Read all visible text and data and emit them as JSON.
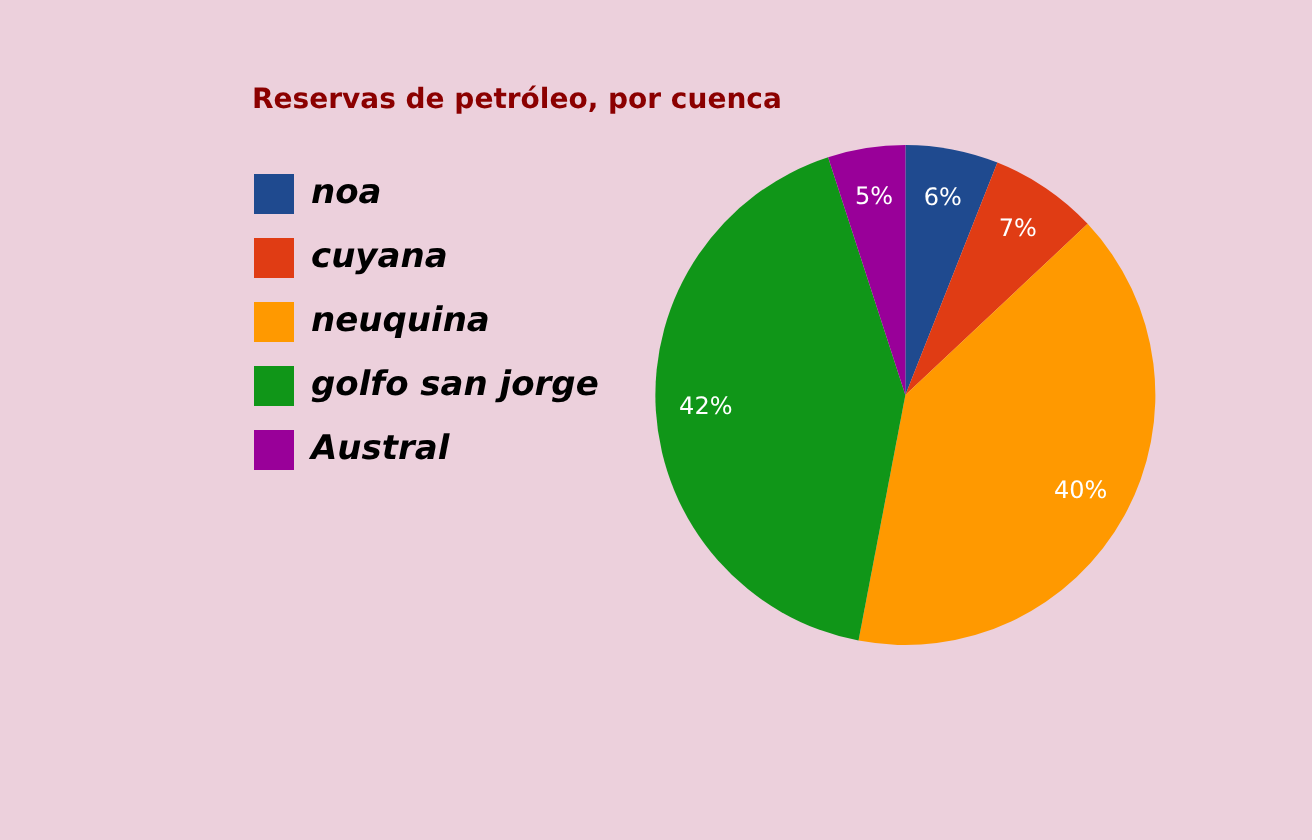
{
  "chart_data": {
    "type": "pie",
    "title": "Reservas de petróleo, por cuenca",
    "categories": [
      "noa",
      "cuyana",
      "neuquina",
      "golfo san jorge",
      "Austral"
    ],
    "values": [
      6,
      7,
      40,
      42,
      5
    ],
    "colors": [
      "#1f4a8f",
      "#e03c14",
      "#ff9900",
      "#109618",
      "#990099"
    ],
    "value_labels": [
      "6%",
      "7%",
      "40%",
      "42%",
      "5%"
    ],
    "legend": "left"
  }
}
